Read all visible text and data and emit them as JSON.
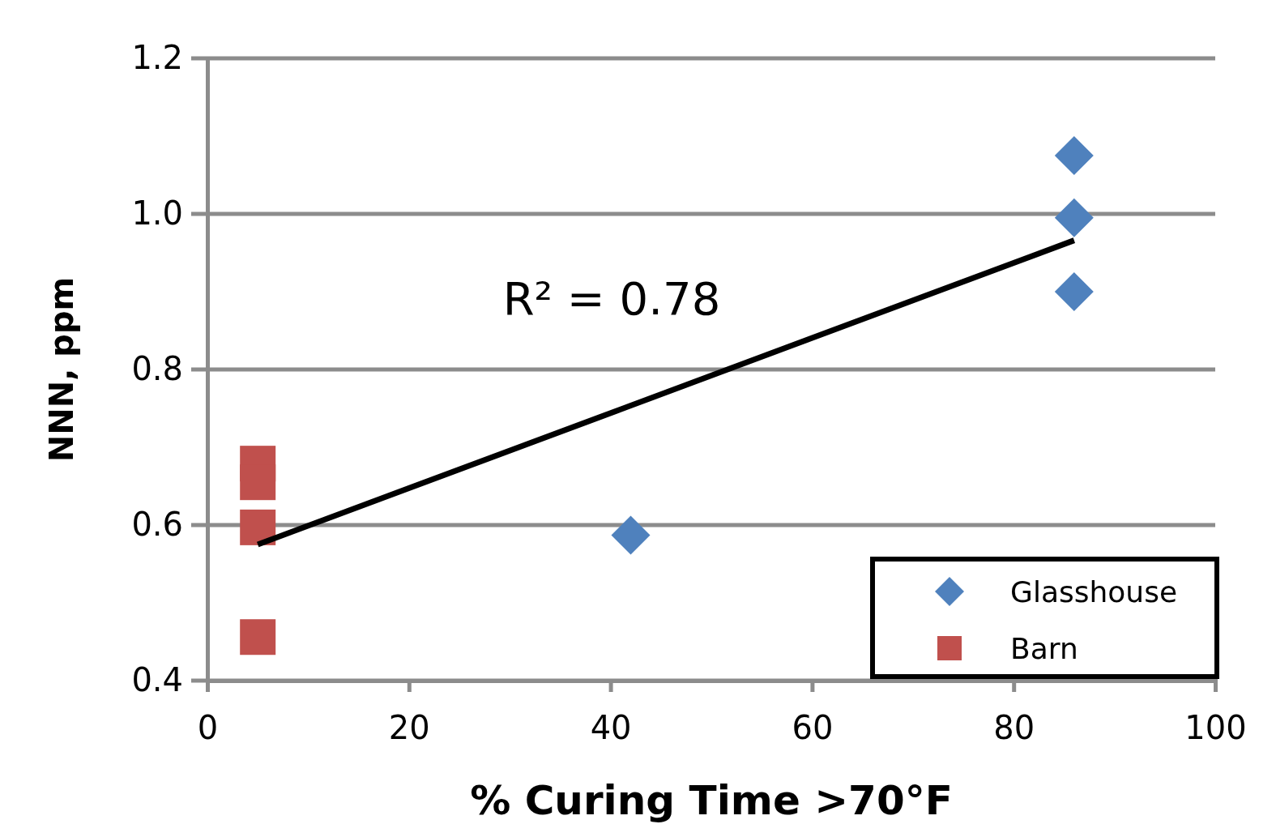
{
  "chart_data": {
    "type": "scatter",
    "xlabel": "% Curing Time >70°F",
    "ylabel": "NNN, ppm",
    "xlim": [
      0,
      100
    ],
    "xticks": [
      0,
      20,
      40,
      60,
      80,
      100
    ],
    "ylim": [
      0.4,
      1.2
    ],
    "yticks": [
      0.4,
      0.6,
      0.8,
      {
        "value": 1.0,
        "label": "1.0"
      },
      1.2
    ],
    "grid": "y",
    "legend": "bottom right",
    "annotations": [
      "R² = 0.78"
    ],
    "series": [
      {
        "name": "Glasshouse",
        "color": "#4f81bd",
        "marker": "diamond",
        "x": [
          86,
          86,
          86,
          42
        ],
        "values": [
          1.075,
          0.995,
          0.9,
          0.587
        ]
      },
      {
        "name": "Barn",
        "color": "#c0504d",
        "marker": "square",
        "x": [
          5,
          5,
          5,
          5
        ],
        "values": [
          0.679,
          0.655,
          0.597,
          0.456
        ]
      },
      {
        "type": "line",
        "color": "#000000",
        "marker": "none",
        "x": [
          5,
          86
        ],
        "values": [
          0.575,
          0.966
        ]
      }
    ]
  }
}
